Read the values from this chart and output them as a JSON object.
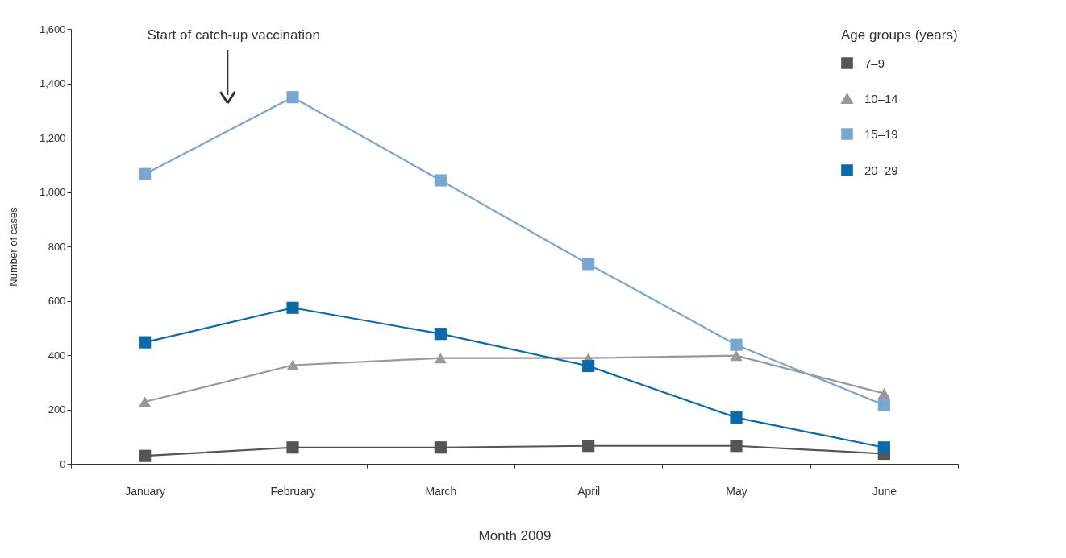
{
  "chart_data": {
    "type": "line",
    "categories": [
      "January",
      "February",
      "March",
      "April",
      "May",
      "June"
    ],
    "xlabel": "Month 2009",
    "ylabel": "Number of cases",
    "legend_title": "Age groups (years)",
    "series": [
      {
        "name": "7–9",
        "color": "#555555",
        "marker": "square",
        "values": [
          29,
          60,
          60,
          66,
          66,
          37
        ]
      },
      {
        "name": "10–14",
        "color": "#999999",
        "marker": "triangle",
        "values": [
          228,
          363,
          389,
          389,
          398,
          259
        ]
      },
      {
        "name": "15–19",
        "color": "#7aa6d2",
        "marker": "square",
        "values": [
          1066,
          1349,
          1043,
          735,
          438,
          216
        ]
      },
      {
        "name": "20–29",
        "color": "#0b6aab",
        "marker": "square",
        "values": [
          447,
          574,
          478,
          360,
          170,
          60
        ]
      }
    ],
    "ylim": [
      0,
      1600
    ],
    "yticks": [
      0,
      200,
      400,
      600,
      800,
      {
        "value": 1000,
        "label": "1,000"
      },
      {
        "value": 1200,
        "label": "1,200"
      },
      {
        "value": 1400,
        "label": "1,400"
      },
      {
        "value": 1600,
        "label": "1,600"
      }
    ],
    "annotations": [
      "Start of catch-up vaccination"
    ],
    "grid": false,
    "legend": "top right",
    "line_style": "solid"
  }
}
